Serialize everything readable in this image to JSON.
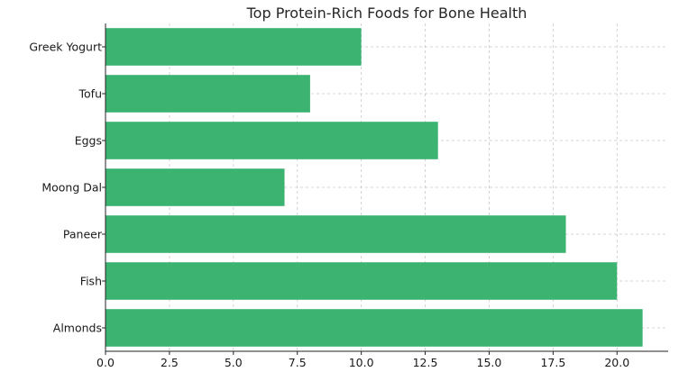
{
  "chart_data": {
    "type": "bar",
    "orientation": "horizontal",
    "title": "Top Protein-Rich Foods for Bone Health",
    "xlabel": "",
    "ylabel": "",
    "categories": [
      "Almonds",
      "Fish",
      "Paneer",
      "Moong Dal",
      "Eggs",
      "Tofu",
      "Greek Yogurt"
    ],
    "values": [
      21,
      20,
      18,
      7,
      13,
      8,
      10
    ],
    "xlim": [
      0,
      22
    ],
    "xticks": [
      0,
      2.5,
      5,
      7.5,
      10,
      12.5,
      15,
      17.5,
      20
    ],
    "xtick_labels": [
      "0.0",
      "2.5",
      "5.0",
      "7.5",
      "10.0",
      "12.5",
      "15.0",
      "17.5",
      "20.0"
    ],
    "grid": true,
    "legend": "none",
    "colors": {
      "bar": "#3cb371"
    }
  }
}
